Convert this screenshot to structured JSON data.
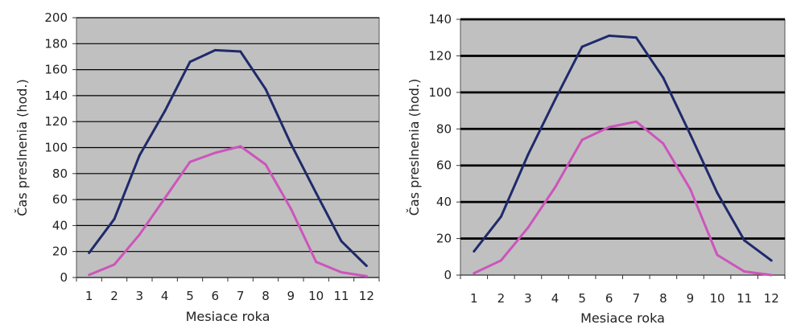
{
  "chart_data": [
    {
      "type": "line",
      "title": "",
      "xlabel": "Mesiace roka",
      "ylabel": "Čas preslnenia (hod.)",
      "categories": [
        "1",
        "2",
        "3",
        "4",
        "5",
        "6",
        "7",
        "8",
        "9",
        "10",
        "11",
        "12"
      ],
      "ylim": [
        0,
        200
      ],
      "yticks": [
        0,
        20,
        40,
        60,
        80,
        100,
        120,
        140,
        160,
        180,
        200
      ],
      "ytick_labels": [
        "0",
        "20",
        "40",
        "60",
        "80",
        "100",
        "120",
        "140",
        "160",
        "180",
        "200"
      ],
      "grid": true,
      "background": "#c0c0c0",
      "series": [
        {
          "values": [
            19,
            45,
            94,
            128,
            166,
            175,
            174,
            145,
            103,
            65,
            28,
            9
          ],
          "color": "#1f2a6b"
        },
        {
          "values": [
            2,
            10,
            33,
            61,
            89,
            96,
            101,
            87,
            53,
            12,
            4,
            1
          ],
          "color": "#cc55bb"
        }
      ]
    },
    {
      "type": "line",
      "title": "",
      "xlabel": "Mesiace roka",
      "ylabel": "Čas preslnenia (hod.)",
      "categories": [
        "1",
        "2",
        "3",
        "4",
        "5",
        "6",
        "7",
        "8",
        "9",
        "10",
        "11",
        "12"
      ],
      "ylim": [
        0,
        140
      ],
      "yticks": [
        0,
        20,
        40,
        60,
        80,
        100,
        120,
        140
      ],
      "ytick_labels": [
        "0",
        "20",
        "40",
        "60",
        "80",
        "100",
        "120",
        "140"
      ],
      "grid": true,
      "background": "#c0c0c0",
      "series": [
        {
          "values": [
            13,
            32,
            66,
            96,
            125,
            131,
            130,
            108,
            77,
            45,
            19,
            8
          ],
          "color": "#1f2a6b"
        },
        {
          "values": [
            1,
            8,
            26,
            48,
            74,
            81,
            84,
            72,
            47,
            11,
            2,
            0
          ],
          "color": "#cc55bb"
        }
      ]
    }
  ]
}
